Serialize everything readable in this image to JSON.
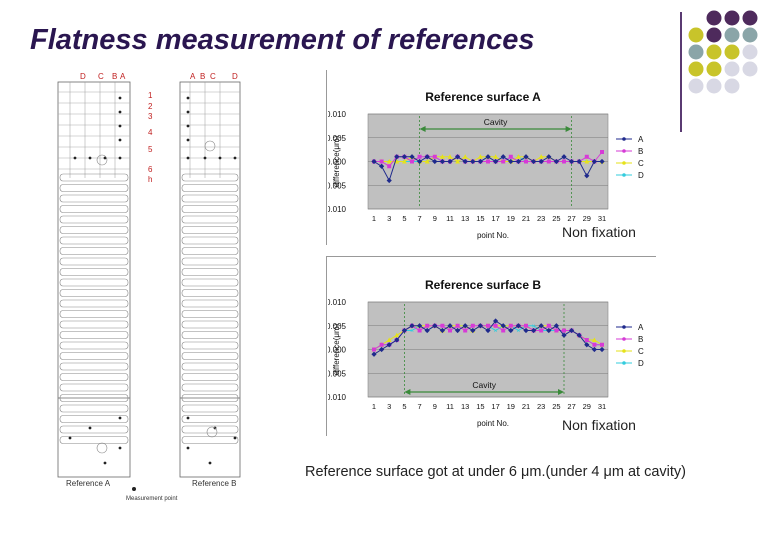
{
  "slide": {
    "title": "Flatness measurement of references",
    "caption": "Reference surface got at under 6 μm.(under 4 μm at cavity)"
  },
  "drawing": {
    "top_labels_left": [
      "D",
      "C",
      "B",
      "A"
    ],
    "top_labels_right": [
      "A",
      "B",
      "C",
      "D"
    ],
    "row_labels": [
      "1",
      "2",
      "3",
      "4",
      "5",
      "6",
      "h"
    ],
    "ref_a": "Reference A",
    "ref_b": "Reference B",
    "legend_text": "Measurement point"
  },
  "colors": {
    "A": "#1f2a8c",
    "B": "#d63bd6",
    "C": "#e6e21a",
    "D": "#33ccdd",
    "plot_bg": "#c0c0c0",
    "cavity_line": "#3a8a3a",
    "title_text": "#2a1650",
    "circle_purple": "#4e2a5c",
    "circle_teal": "#8aa5a8",
    "circle_olive": "#c8c42a",
    "circle_light": "#d8d8e4"
  },
  "chart_data": [
    {
      "type": "line",
      "title": "Reference surface A",
      "xlabel": "point No.",
      "ylabel": "difference(μm)",
      "ylim": [
        -0.01,
        0.01
      ],
      "yticks": [
        "0.010",
        "0.005",
        "0.000",
        "-0.005",
        "-0.010"
      ],
      "xticks": [
        "1",
        "3",
        "5",
        "7",
        "9",
        "11",
        "13",
        "15",
        "17",
        "19",
        "21",
        "23",
        "25",
        "27",
        "29",
        "31"
      ],
      "x": [
        1,
        2,
        3,
        4,
        5,
        6,
        7,
        8,
        9,
        10,
        11,
        12,
        13,
        14,
        15,
        16,
        17,
        18,
        19,
        20,
        21,
        22,
        23,
        24,
        25,
        26,
        27,
        28,
        29,
        30,
        31
      ],
      "cavity_label": "Cavity",
      "cavity_range": [
        7,
        27
      ],
      "note": "Non fixation",
      "legend_position": "right",
      "series": [
        {
          "name": "A",
          "values": [
            0.0,
            -0.001,
            -0.004,
            0.001,
            0.001,
            0.001,
            0.0,
            0.001,
            0.0,
            0.0,
            0.0,
            0.001,
            0.0,
            0.0,
            0.0,
            0.001,
            0.0,
            0.001,
            0.0,
            0.0,
            0.001,
            0.0,
            0.0,
            0.001,
            0.0,
            0.001,
            0.0,
            0.0,
            -0.003,
            0.0,
            0.0
          ]
        },
        {
          "name": "B",
          "values": [
            0.0,
            0.0,
            -0.001,
            0.001,
            0.001,
            0.0,
            0.001,
            0.001,
            0.001,
            0.0,
            0.0,
            0.001,
            0.0,
            0.0,
            0.0,
            0.0,
            0.0,
            0.0,
            0.001,
            0.0,
            0.0,
            0.0,
            0.0,
            0.0,
            0.0,
            0.0,
            0.0,
            0.0,
            0.001,
            0.0,
            0.002
          ]
        },
        {
          "name": "C",
          "values": [
            0.0,
            0.0,
            0.0,
            0.0,
            0.0,
            0.001,
            0.0,
            0.0,
            0.001,
            0.001,
            0.001,
            0.0,
            0.001,
            0.0,
            0.001,
            0.001,
            0.001,
            0.0,
            0.0,
            0.001,
            0.001,
            0.0,
            0.001,
            0.001,
            0.0,
            0.0,
            0.0,
            0.0,
            0.0,
            0.0,
            0.0
          ]
        },
        {
          "name": "D",
          "values": [
            0.0,
            0.0,
            0.0,
            0.0,
            0.0,
            0.0,
            0.0,
            0.0,
            0.001,
            0.0,
            0.0,
            0.001,
            0.0,
            0.0,
            0.0,
            0.001,
            0.0,
            0.001,
            0.0,
            0.001,
            0.0,
            0.0,
            0.0,
            0.0,
            0.0,
            0.0,
            0.0,
            0.0,
            0.0,
            0.0,
            0.0
          ]
        }
      ]
    },
    {
      "type": "line",
      "title": "Reference surface B",
      "xlabel": "point No.",
      "ylabel": "difference(μm)",
      "ylim": [
        -0.01,
        0.01
      ],
      "yticks": [
        "0.010",
        "0.005",
        "0.000",
        "-0.005",
        "-0.010"
      ],
      "xticks": [
        "1",
        "3",
        "5",
        "7",
        "9",
        "11",
        "13",
        "15",
        "17",
        "19",
        "21",
        "23",
        "25",
        "27",
        "29",
        "31"
      ],
      "x": [
        1,
        2,
        3,
        4,
        5,
        6,
        7,
        8,
        9,
        10,
        11,
        12,
        13,
        14,
        15,
        16,
        17,
        18,
        19,
        20,
        21,
        22,
        23,
        24,
        25,
        26,
        27,
        28,
        29,
        30,
        31
      ],
      "cavity_label": "Cavity",
      "cavity_range": [
        5,
        26
      ],
      "note": "Non fixation",
      "legend_position": "right",
      "series": [
        {
          "name": "A",
          "values": [
            -0.001,
            0.0,
            0.001,
            0.002,
            0.004,
            0.005,
            0.005,
            0.004,
            0.005,
            0.004,
            0.005,
            0.004,
            0.005,
            0.004,
            0.005,
            0.004,
            0.006,
            0.005,
            0.004,
            0.005,
            0.004,
            0.004,
            0.005,
            0.004,
            0.005,
            0.003,
            0.004,
            0.003,
            0.001,
            0.0,
            0.0
          ]
        },
        {
          "name": "B",
          "values": [
            0.0,
            0.001,
            0.001,
            0.002,
            0.004,
            0.005,
            0.004,
            0.005,
            0.005,
            0.005,
            0.004,
            0.005,
            0.004,
            0.005,
            0.005,
            0.005,
            0.005,
            0.004,
            0.005,
            0.005,
            0.005,
            0.004,
            0.004,
            0.005,
            0.004,
            0.004,
            0.004,
            0.003,
            0.002,
            0.001,
            0.001
          ]
        },
        {
          "name": "C",
          "values": [
            0.0,
            0.001,
            0.002,
            0.003,
            0.004,
            0.005,
            0.005,
            0.005,
            0.005,
            0.004,
            0.005,
            0.005,
            0.005,
            0.004,
            0.005,
            0.005,
            0.005,
            0.005,
            0.005,
            0.005,
            0.005,
            0.004,
            0.005,
            0.005,
            0.004,
            0.004,
            0.004,
            0.003,
            0.002,
            0.002,
            0.001
          ]
        },
        {
          "name": "D",
          "values": [
            0.0,
            0.001,
            0.001,
            0.002,
            0.004,
            0.004,
            0.005,
            0.004,
            0.005,
            0.005,
            0.004,
            0.005,
            0.005,
            0.004,
            0.005,
            0.005,
            0.004,
            0.005,
            0.005,
            0.004,
            0.005,
            0.005,
            0.004,
            0.004,
            0.004,
            0.004,
            0.004,
            0.003,
            0.002,
            0.001,
            0.001
          ]
        }
      ]
    }
  ]
}
